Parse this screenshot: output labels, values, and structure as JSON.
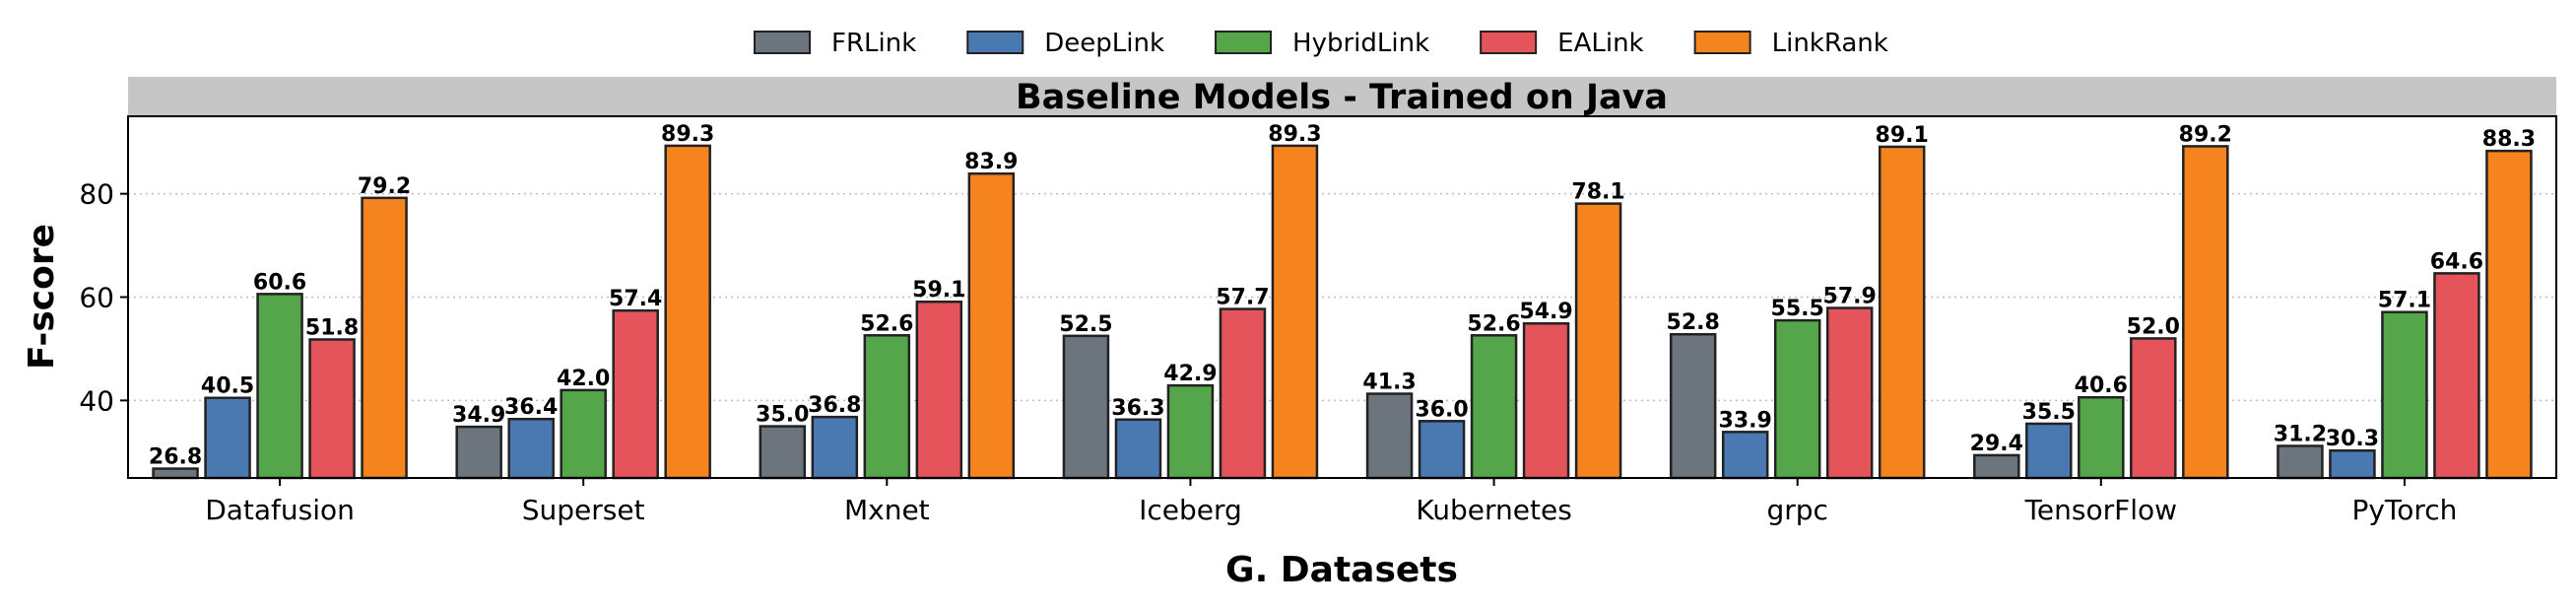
{
  "chart_data": {
    "type": "bar",
    "title": "Baseline Models - Trained on Java",
    "xlabel": "G. Datasets",
    "ylabel": "F-score",
    "ylim": [
      25,
      95
    ],
    "yticks": [
      40,
      60,
      80
    ],
    "grid": "y-dotted",
    "legend_position": "top-center",
    "categories": [
      "Datafusion",
      "Superset",
      "Mxnet",
      "Iceberg",
      "Kubernetes",
      "grpc",
      "TensorFlow",
      "PyTorch"
    ],
    "series": [
      {
        "name": "FRLink",
        "color": "#6c757d",
        "values": [
          26.8,
          34.9,
          35.0,
          52.5,
          41.3,
          52.8,
          29.4,
          31.2
        ]
      },
      {
        "name": "DeepLink",
        "color": "#4a78b0",
        "values": [
          40.5,
          36.4,
          36.8,
          36.3,
          36.0,
          33.9,
          35.5,
          30.3
        ]
      },
      {
        "name": "HybridLink",
        "color": "#55a54b",
        "values": [
          60.6,
          42.0,
          52.6,
          42.9,
          52.6,
          55.5,
          40.6,
          57.1
        ]
      },
      {
        "name": "EALink",
        "color": "#e5545a",
        "values": [
          51.8,
          57.4,
          59.1,
          57.7,
          54.9,
          57.9,
          52.0,
          64.6
        ]
      },
      {
        "name": "LinkRank",
        "color": "#f5841f",
        "values": [
          79.2,
          89.3,
          83.9,
          89.3,
          78.1,
          89.1,
          89.2,
          88.3
        ]
      }
    ]
  }
}
